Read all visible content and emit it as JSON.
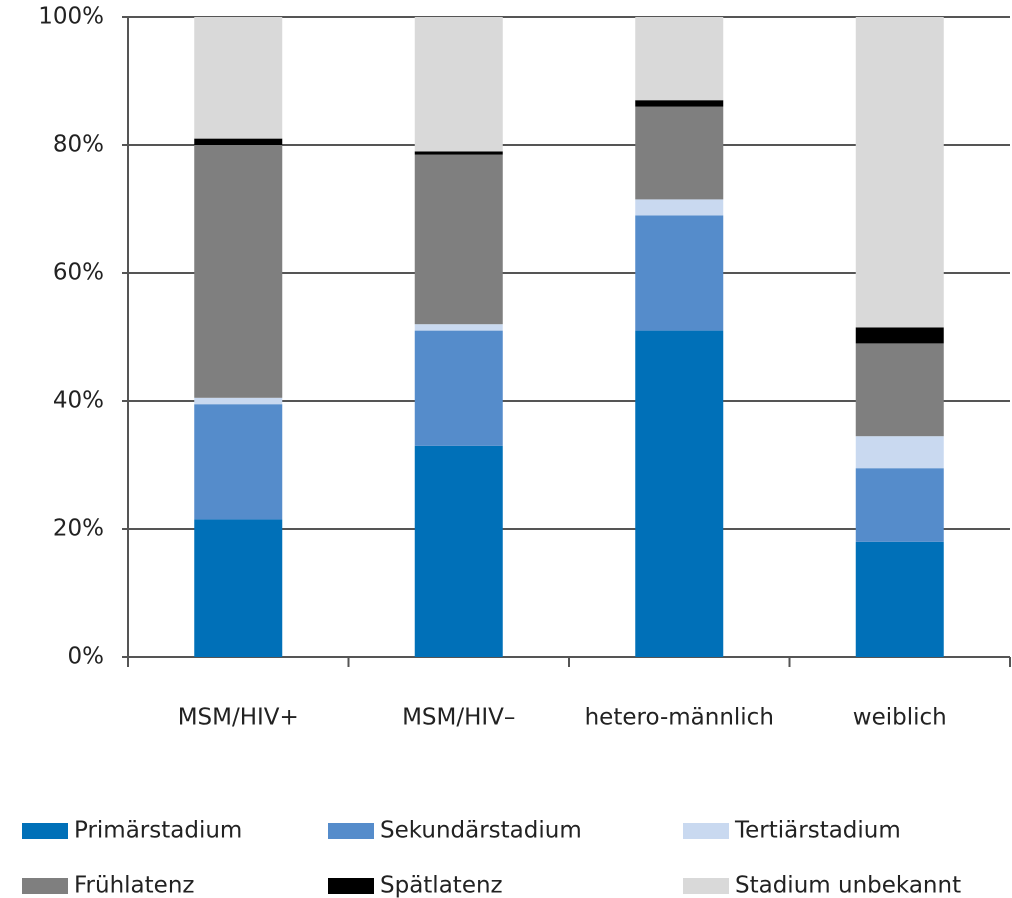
{
  "chart_data": {
    "type": "stacked_bar",
    "categories": [
      "MSM/HIV+",
      "MSM/HIV–",
      "hetero-männlich",
      "weiblich"
    ],
    "series": [
      {
        "name": "Primärstadium",
        "color": "#0070b8",
        "values": [
          21.5,
          33,
          51,
          18
        ]
      },
      {
        "name": "Sekundärstadium",
        "color": "#558ccb",
        "values": [
          18,
          18,
          18,
          11.5
        ]
      },
      {
        "name": "Tertiärstadium",
        "color": "#c9d9f0",
        "values": [
          1,
          1,
          2.5,
          5
        ]
      },
      {
        "name": "Frühlatenz",
        "color": "#7f7f7f",
        "values": [
          39.5,
          26.5,
          14.5,
          14.5
        ]
      },
      {
        "name": "Spätlatenz",
        "color": "#000000",
        "values": [
          1,
          0.5,
          1,
          2.5
        ]
      },
      {
        "name": "Stadium unbekannt",
        "color": "#d9d9d9",
        "values": [
          19,
          21,
          13,
          48.5
        ]
      }
    ],
    "ylim": [
      0,
      100
    ],
    "yticks": [
      {
        "value": 0,
        "label": "0%"
      },
      {
        "value": 20,
        "label": "20%"
      },
      {
        "value": 40,
        "label": "40%"
      },
      {
        "value": 60,
        "label": "60%"
      },
      {
        "value": 80,
        "label": "80%"
      },
      {
        "value": 100,
        "label": "100%"
      }
    ],
    "grid": true,
    "legend": "bottom"
  }
}
